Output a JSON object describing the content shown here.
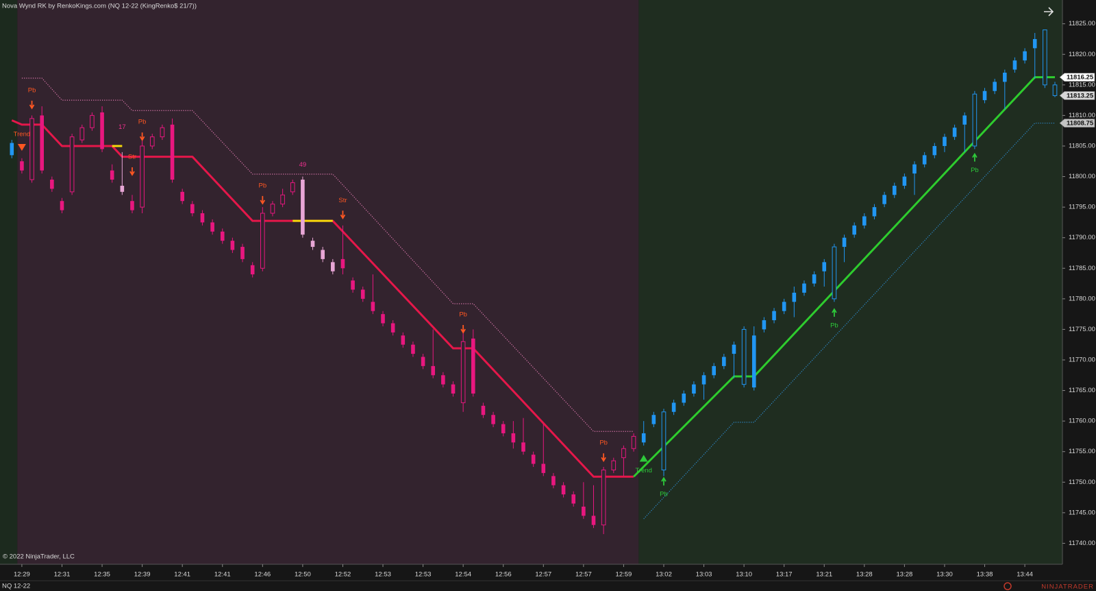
{
  "chart_data": {
    "type": "candlestick",
    "title": "Nova Wynd RK by RenkoKings.com (NQ 12-22 (KingRenko$ 21/7))",
    "copyright": "© 2022 NinjaTrader, LLC",
    "instrument": "NQ 12-22",
    "logo": "NINJATRADER",
    "x": [
      null,
      "12:29",
      null,
      null,
      null,
      "12:31",
      null,
      null,
      null,
      "12:35",
      null,
      null,
      null,
      "12:39",
      null,
      null,
      null,
      "12:41",
      null,
      null,
      null,
      "12:41",
      null,
      null,
      null,
      "12:46",
      null,
      null,
      null,
      "12:50",
      null,
      null,
      null,
      "12:52",
      null,
      null,
      null,
      "12:53",
      null,
      null,
      null,
      "12:53",
      null,
      null,
      null,
      "12:54",
      null,
      null,
      null,
      "12:56",
      null,
      null,
      null,
      "12:57",
      null,
      null,
      null,
      "12:57",
      null,
      null,
      null,
      "12:59",
      null,
      null,
      null,
      "13:02",
      null,
      null,
      null,
      "13:03",
      null,
      null,
      null,
      "13:10",
      null,
      null,
      null,
      "13:17",
      null,
      null,
      null,
      "13:21",
      null,
      null,
      null,
      "13:28",
      null,
      null,
      null,
      "13:28",
      null,
      null,
      null,
      "13:30",
      null,
      null,
      null,
      "13:38",
      null,
      null,
      null,
      "13:44",
      null,
      null,
      null
    ],
    "open": [
      11803.5,
      11802.5,
      11799.5,
      11810,
      11799.5,
      11796,
      11797.5,
      11806,
      11808,
      11810.5,
      11801,
      11798.5,
      11796,
      11795,
      11805,
      11806.5,
      11808.5,
      11797.5,
      11795.5,
      11794,
      11792.5,
      11791,
      11789.5,
      11788.5,
      11785.5,
      11785,
      11794,
      11795.5,
      11797.5,
      11799.5,
      11789.5,
      11788,
      11786,
      11786.5,
      11783,
      11781.5,
      11779.5,
      11777.5,
      11776,
      11774,
      11772.5,
      11770.5,
      11769,
      11767.5,
      11766,
      11763,
      11773.5,
      11762.5,
      11761,
      11759.5,
      11758,
      11756.5,
      11754.5,
      11753,
      11751,
      11749.5,
      11748,
      11746,
      11744.5,
      11743,
      11752,
      11754,
      11755.5,
      11756.5,
      11759.5,
      11752,
      11761.5,
      11763,
      11764.5,
      11766,
      11767.5,
      11769,
      11771,
      11766,
      11765.5,
      11775,
      11776.5,
      11778,
      11779.5,
      11781,
      11782.5,
      11784.5,
      11780,
      11788.5,
      11790.5,
      11792,
      11793.5,
      11795.5,
      11797,
      11798.5,
      11800.5,
      11802,
      11803.5,
      11805,
      11806.5,
      11808.5,
      11805,
      11812.5,
      11814,
      11815.5,
      11817.5,
      11819,
      11821,
      11815,
      11813.25
    ],
    "high": [
      11806,
      11803,
      11810,
      11811.5,
      11800,
      11796.5,
      11807,
      11808.5,
      11810.5,
      11811.5,
      11802,
      11804,
      11797,
      11806.5,
      11807,
      11808.5,
      11809.5,
      11798,
      11796,
      11794.5,
      11793,
      11791.5,
      11790,
      11789,
      11786,
      11795,
      11796,
      11798,
      11799.5,
      11800,
      11790,
      11788.5,
      11786.5,
      11792,
      11783.5,
      11782,
      11784,
      11778,
      11776.5,
      11774.5,
      11773,
      11771,
      11775,
      11768,
      11766.5,
      11775,
      11775,
      11763,
      11761.5,
      11760,
      11760,
      11760.5,
      11755,
      11759.5,
      11751.5,
      11750,
      11748.5,
      11750,
      11749.5,
      11752.5,
      11754,
      11756,
      11758,
      11760,
      11761.5,
      11762,
      11763.5,
      11765,
      11766.5,
      11768,
      11769.5,
      11771,
      11773,
      11775.5,
      11775.5,
      11777,
      11778.5,
      11780,
      11782,
      11783,
      11784.5,
      11786.5,
      11789,
      11790.5,
      11792.5,
      11794,
      11795.5,
      11797.5,
      11799,
      11800.5,
      11802.5,
      11804,
      11805.5,
      11807,
      11808.5,
      11810.5,
      11814,
      11814.5,
      11816,
      11817.5,
      11819.5,
      11821,
      11823.5,
      11824,
      11815.5
    ],
    "low": [
      11803,
      11800.5,
      11799,
      11800.5,
      11797.5,
      11794,
      11797,
      11805.5,
      11807.5,
      11804,
      11799,
      11797,
      11794,
      11794,
      11804.5,
      11806,
      11799,
      11795.5,
      11793.5,
      11792,
      11790.5,
      11789,
      11787.5,
      11786,
      11783.5,
      11784.5,
      11793.5,
      11795,
      11797,
      11790,
      11788,
      11786,
      11784,
      11784,
      11781,
      11779.5,
      11777.5,
      11775.5,
      11774,
      11772,
      11770.5,
      11768.5,
      11767,
      11765.5,
      11764,
      11761.5,
      11764,
      11760.5,
      11759,
      11757.5,
      11755.5,
      11754.5,
      11752.5,
      11751,
      11749,
      11747.5,
      11746,
      11744,
      11742.5,
      11741.5,
      11751.5,
      11751,
      11755,
      11756,
      11759,
      11751,
      11761,
      11762.5,
      11764,
      11763.5,
      11767,
      11768.5,
      11767,
      11765.5,
      11765,
      11774.5,
      11776,
      11777.5,
      11777,
      11780.5,
      11782,
      11782,
      11779.5,
      11786,
      11790,
      11791.5,
      11793,
      11795,
      11796.5,
      11798,
      11797,
      11801.5,
      11803,
      11804,
      11806,
      11804,
      11804.5,
      11812,
      11813.5,
      11811,
      11817,
      11818.5,
      11816,
      11814.5,
      11813
    ],
    "close": [
      11805.5,
      11801,
      11809.5,
      11801,
      11798,
      11794.5,
      11806.5,
      11808,
      11810,
      11804.5,
      11799.5,
      11797.5,
      11794.5,
      11805,
      11806.5,
      11808,
      11799.5,
      11796,
      11794,
      11792.5,
      11791,
      11789.5,
      11788,
      11786.5,
      11784,
      11794,
      11795.5,
      11797,
      11799,
      11790.5,
      11788.5,
      11786.5,
      11784.5,
      11785,
      11781.5,
      11780,
      11778,
      11776,
      11774.5,
      11772.5,
      11771,
      11769,
      11767.5,
      11766,
      11764.5,
      11773,
      11764.5,
      11761,
      11759.5,
      11758,
      11756.5,
      11755,
      11753,
      11751.5,
      11749.5,
      11748,
      11746.5,
      11744.5,
      11743,
      11752,
      11753.5,
      11755.5,
      11757.5,
      11758,
      11761,
      11761.5,
      11763,
      11764.5,
      11766,
      11767.5,
      11769,
      11770.5,
      11772.5,
      11775,
      11774,
      11776.5,
      11778,
      11779.5,
      11781,
      11782.5,
      11784,
      11786,
      11788.5,
      11790,
      11792,
      11793.5,
      11795,
      11797,
      11798.5,
      11800,
      11802,
      11803.5,
      11805,
      11806.5,
      11808,
      11810,
      11813.5,
      11814,
      11815.5,
      11817,
      11819,
      11820.5,
      11822.5,
      11824,
      11815
    ],
    "up_color": "#2196f3",
    "down_color": "#e8177f",
    "pale_color": "#e8a6d6",
    "hollow": [
      65,
      73,
      82,
      96,
      103,
      104
    ],
    "pale": [
      11,
      29,
      30,
      31,
      32
    ],
    "regions": [
      {
        "start": -1.18,
        "end": 0.55,
        "background": "#1c2a1e",
        "trend": "up"
      },
      {
        "start": 0.55,
        "end": 62.5,
        "background": "#33232e",
        "trend": "down"
      },
      {
        "start": 62.5,
        "end": 104.75,
        "background": "#1f2d20",
        "trend": "up"
      }
    ],
    "lines": [
      {
        "color": "#e5174a",
        "style": "solid",
        "x": [
          0,
          1,
          3,
          5,
          10,
          11,
          18,
          24,
          32,
          44,
          46,
          58,
          62
        ],
        "values": [
          11809.2,
          11808.5,
          11808.5,
          11805,
          11805,
          11803.25,
          11803.25,
          11792.75,
          11792.75,
          11771.9,
          11771.9,
          11750.9,
          11750.9
        ]
      },
      {
        "color": "#2ecc2e",
        "style": "solid",
        "x": [
          62,
          72,
          74,
          102,
          104
        ],
        "values": [
          11750.9,
          11767.3,
          11767.3,
          11816.25,
          11816.25
        ]
      },
      {
        "color": "#f5d90a",
        "style": "solid",
        "x": [
          10,
          11
        ],
        "values": [
          11805,
          11805
        ]
      },
      {
        "color": "#f5d90a",
        "style": "solid",
        "x": [
          28,
          32
        ],
        "values": [
          11792.75,
          11792.75
        ]
      },
      {
        "color": "#e07ab0",
        "style": "dotted",
        "x": [
          1,
          3,
          5,
          11,
          12,
          18,
          24,
          32,
          44,
          46,
          58,
          62
        ],
        "values": [
          11816.1,
          11816.1,
          11812.5,
          11812.5,
          11810.8,
          11810.8,
          11800.4,
          11800.4,
          11779.2,
          11779.2,
          11758.3,
          11758.3
        ]
      },
      {
        "color": "#2e8fd6",
        "style": "dotted",
        "x": [
          63,
          72,
          74,
          102,
          104
        ],
        "values": [
          11744,
          11759.8,
          11759.8,
          11808.75,
          11808.75
        ]
      }
    ],
    "annotations": [
      {
        "text": "Trend",
        "x": 1,
        "y": 11806.9,
        "color": "#ff5722",
        "marker": "triangle-down"
      },
      {
        "text": "Pb",
        "x": 2,
        "y": 11814.1,
        "color": "#ff5722",
        "marker": "arrow-down"
      },
      {
        "text": "17",
        "x": 11,
        "y": 11808.1,
        "color": "#f0308f"
      },
      {
        "text": "Pb",
        "x": 13,
        "y": 11808.9,
        "color": "#ff5722",
        "marker": "arrow-down"
      },
      {
        "text": "Str",
        "x": 12,
        "y": 11803.2,
        "color": "#ff5722",
        "marker": "arrow-down"
      },
      {
        "text": "Pb",
        "x": 25,
        "y": 11798.5,
        "color": "#ff5722",
        "marker": "arrow-down"
      },
      {
        "text": "49",
        "x": 29,
        "y": 11801.9,
        "color": "#f0308f"
      },
      {
        "text": "Str",
        "x": 33,
        "y": 11796.1,
        "color": "#ff5722",
        "marker": "arrow-down"
      },
      {
        "text": "Pb",
        "x": 45,
        "y": 11777.4,
        "color": "#ff5722",
        "marker": "arrow-down"
      },
      {
        "text": "Pb",
        "x": 59,
        "y": 11756.4,
        "color": "#ff5722",
        "marker": "arrow-down"
      },
      {
        "text": "Trend",
        "x": 63,
        "y": 11751.9,
        "color": "#2ec93a",
        "marker": "triangle-up"
      },
      {
        "text": "Pb",
        "x": 65,
        "y": 11748.0,
        "color": "#2ec93a",
        "marker": "arrow-up"
      },
      {
        "text": "Pb",
        "x": 82,
        "y": 11775.6,
        "color": "#2ec93a",
        "marker": "arrow-up"
      },
      {
        "text": "Pb",
        "x": 96,
        "y": 11801.0,
        "color": "#2ec93a",
        "marker": "arrow-up"
      }
    ],
    "price_markers": [
      {
        "value": 11816.25,
        "color": "#ffffff"
      },
      {
        "value": 11813.25,
        "color": "#d8d8d8"
      },
      {
        "value": 11808.75,
        "color": "#c4c4c4"
      }
    ],
    "xlim": [
      -1.18,
      104.75
    ],
    "ylim": [
      11736.57,
      11828.89
    ],
    "yticks": [
      {
        "value": 11740,
        "label": "11740.00"
      },
      {
        "value": 11745,
        "label": "11745.00"
      },
      {
        "value": 11750,
        "label": "11750.00"
      },
      {
        "value": 11755,
        "label": "11755.00"
      },
      {
        "value": 11760,
        "label": "11760.00"
      },
      {
        "value": 11765,
        "label": "11765.00"
      },
      {
        "value": 11770,
        "label": "11770.00"
      },
      {
        "value": 11775,
        "label": "11775.00"
      },
      {
        "value": 11780,
        "label": "11780.00"
      },
      {
        "value": 11785,
        "label": "11785.00"
      },
      {
        "value": 11790,
        "label": "11790.00"
      },
      {
        "value": 11795,
        "label": "11795.00"
      },
      {
        "value": 11800,
        "label": "11800.00"
      },
      {
        "value": 11805,
        "label": "11805.00"
      },
      {
        "value": 11810,
        "label": "11810.00"
      },
      {
        "value": 11815,
        "label": "11815.00"
      },
      {
        "value": 11820,
        "label": "11820.00"
      },
      {
        "value": 11825,
        "label": "11825.00"
      }
    ]
  }
}
